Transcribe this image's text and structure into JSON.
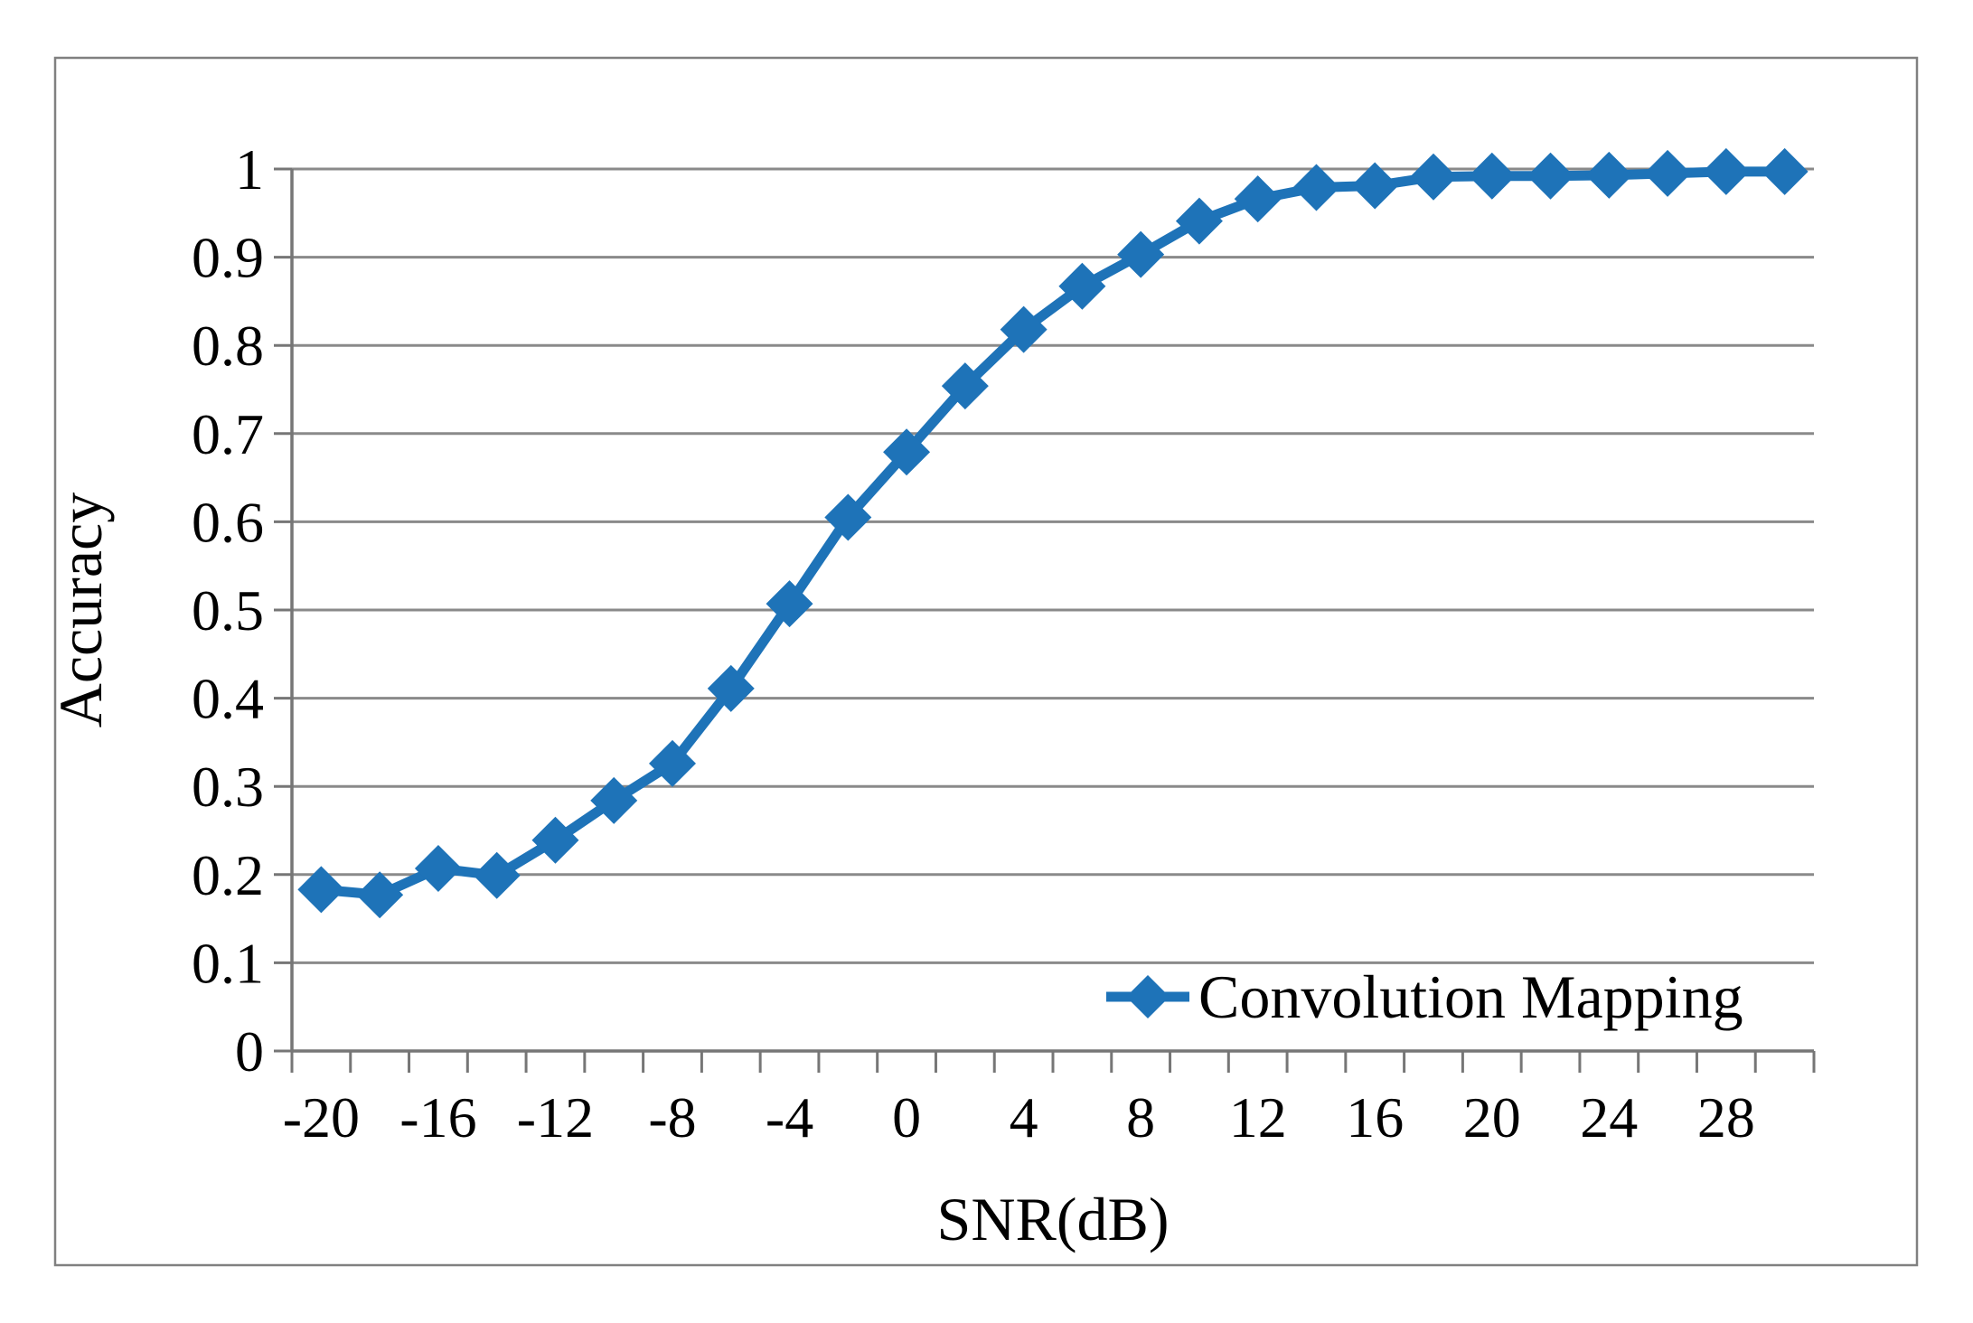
{
  "chart_data": {
    "type": "line",
    "title": "",
    "xlabel": "SNR(dB)",
    "ylabel": "Accuracy",
    "x": [
      -20,
      -18,
      -16,
      -14,
      -12,
      -10,
      -8,
      -6,
      -4,
      -2,
      0,
      2,
      4,
      6,
      8,
      10,
      12,
      14,
      16,
      18,
      20,
      22,
      24,
      26,
      28,
      30
    ],
    "series": [
      {
        "name": "Convolution Mapping",
        "color": "#1E73B8",
        "marker": "diamond",
        "values": [
          0.183,
          0.177,
          0.207,
          0.199,
          0.239,
          0.284,
          0.326,
          0.411,
          0.507,
          0.605,
          0.679,
          0.754,
          0.818,
          0.867,
          0.903,
          0.941,
          0.966,
          0.979,
          0.981,
          0.991,
          0.992,
          0.992,
          0.993,
          0.995,
          0.997,
          0.997
        ]
      }
    ],
    "ylim": [
      0,
      1
    ],
    "ytick_step": 0.1,
    "y_tick_labels": [
      "0",
      "0.1",
      "0.2",
      "0.3",
      "0.4",
      "0.5",
      "0.6",
      "0.7",
      "0.8",
      "0.9",
      "1"
    ],
    "x_tick_labels": [
      "-20",
      "-16",
      "-12",
      "-8",
      "-4",
      "0",
      "4",
      "8",
      "12",
      "16",
      "20",
      "24",
      "28"
    ],
    "x_label_every_n_categories": 2,
    "grid": "horizontal",
    "gridline_color": "#8A8A8A",
    "axis_color": "#767676",
    "border_color": "#808080",
    "legend_position": "inside-bottom-right"
  }
}
